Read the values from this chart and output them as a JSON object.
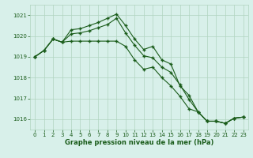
{
  "x": [
    0,
    1,
    2,
    3,
    4,
    5,
    6,
    7,
    8,
    9,
    10,
    11,
    12,
    13,
    14,
    15,
    16,
    17,
    18,
    19,
    20,
    21,
    22,
    23
  ],
  "line_top": [
    1019.0,
    1019.3,
    1019.85,
    1019.7,
    1020.3,
    1020.35,
    1020.5,
    1020.65,
    1020.85,
    1021.05,
    1020.5,
    1019.85,
    1019.35,
    1019.5,
    1018.85,
    1018.65,
    1017.6,
    1017.15,
    1016.35,
    1015.9,
    1015.9,
    1015.8,
    1016.05,
    1016.1
  ],
  "line_mid": [
    1019.0,
    1019.3,
    1019.85,
    1019.7,
    1020.1,
    1020.15,
    1020.25,
    1020.4,
    1020.55,
    1020.85,
    1020.15,
    1019.55,
    1019.05,
    1018.95,
    1018.5,
    1018.25,
    1017.65,
    1016.95,
    1016.35,
    1015.9,
    1015.9,
    1015.8,
    1016.05,
    1016.1
  ],
  "line_bot": [
    1019.0,
    1019.3,
    1019.85,
    1019.7,
    1019.75,
    1019.75,
    1019.75,
    1019.75,
    1019.75,
    1019.75,
    1019.5,
    1018.85,
    1018.4,
    1018.5,
    1018.0,
    1017.6,
    1017.1,
    1016.5,
    1016.35,
    1015.9,
    1015.9,
    1015.8,
    1016.05,
    1016.1
  ],
  "line_color": "#1a5c1a",
  "bg_color": "#d8f0ea",
  "grid_color": "#b0d4c0",
  "xlabel": "Graphe pression niveau de la mer (hPa)",
  "ylim": [
    1015.5,
    1021.5
  ],
  "xlim": [
    -0.5,
    23.5
  ],
  "yticks": [
    1016,
    1017,
    1018,
    1019,
    1020,
    1021
  ],
  "xticks": [
    0,
    1,
    2,
    3,
    4,
    5,
    6,
    7,
    8,
    9,
    10,
    11,
    12,
    13,
    14,
    15,
    16,
    17,
    18,
    19,
    20,
    21,
    22,
    23
  ]
}
